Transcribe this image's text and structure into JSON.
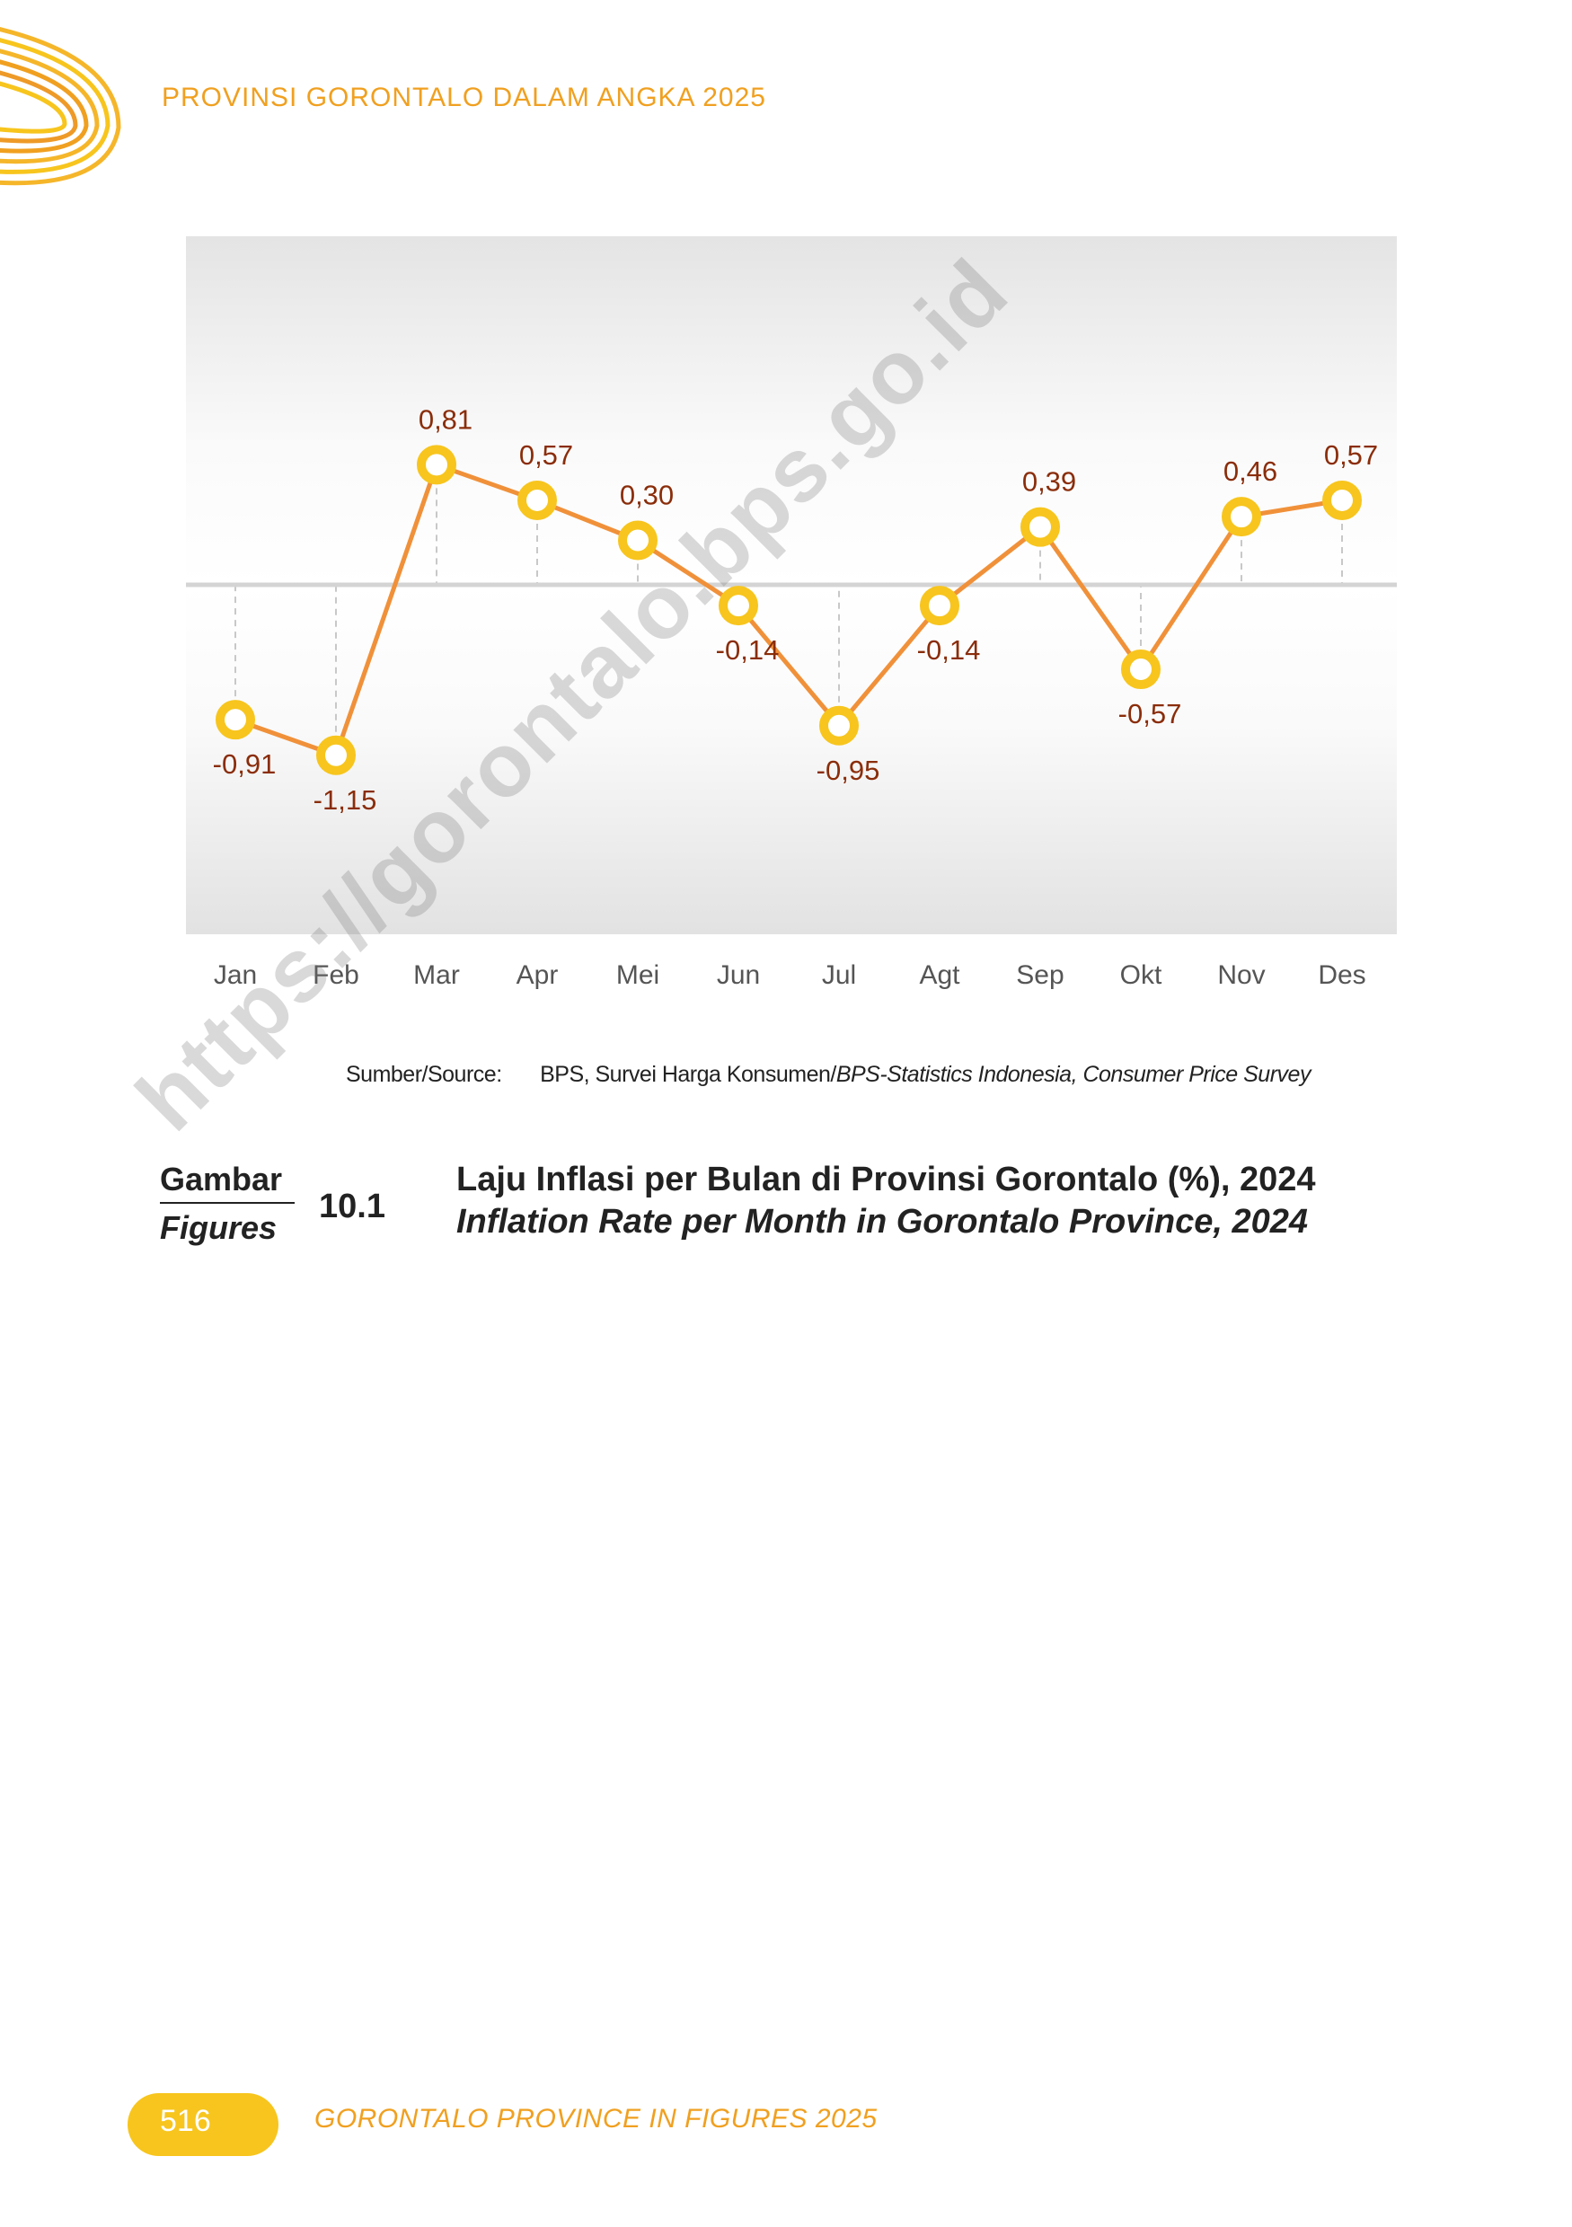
{
  "header": {
    "title": "PROVINSI GORONTALO DALAM ANGKA 2025"
  },
  "chart_data": {
    "type": "line",
    "categories": [
      "Jan",
      "Feb",
      "Mar",
      "Apr",
      "Mei",
      "Jun",
      "Jul",
      "Agt",
      "Sep",
      "Okt",
      "Nov",
      "Des"
    ],
    "values": [
      -0.91,
      -1.15,
      0.81,
      0.57,
      0.3,
      -0.14,
      -0.95,
      -0.14,
      0.39,
      -0.57,
      0.46,
      0.57
    ],
    "data_labels": [
      "-0,91",
      "-1,15",
      "0,81",
      "0,57",
      "0,30",
      "-0,14",
      "-0,95",
      "-0,14",
      "0,39",
      "-0,57",
      "0,46",
      "0,57"
    ],
    "ylim": [
      -2.0,
      2.0
    ],
    "grid": false,
    "legend": "none",
    "colors": {
      "line": "#f0913a",
      "marker": "#f7c51d",
      "label": "#8a2d0a",
      "axis": "#d4d4d4"
    }
  },
  "source": {
    "label": "Sumber/Source:",
    "text_id": "BPS, Survei Harga Konsumen/",
    "text_en": "BPS-Statistics Indonesia, Consumer Price Survey"
  },
  "figure": {
    "label_id": "Gambar",
    "label_en": "Figures",
    "number": "10.1",
    "title_id": "Laju Inflasi per Bulan di Provinsi Gorontalo (%), 2024",
    "title_en": "Inflation Rate per Month in Gorontalo Province, 2024"
  },
  "watermark": "https://gorontalo.bps.go.id",
  "footer": {
    "page": "516",
    "text": "GORONTALO PROVINCE IN FIGURES 2025"
  }
}
